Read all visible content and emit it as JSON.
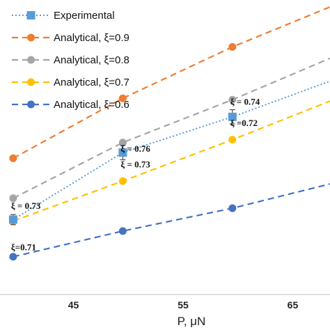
{
  "chart_data": {
    "type": "line",
    "title": "",
    "xlabel": "P, μN",
    "ylabel": "",
    "xlim": [
      38.3,
      68.4
    ],
    "ylim": [
      0,
      100
    ],
    "x_ticks": [
      45,
      55,
      65
    ],
    "x_tick_labels": [
      "45",
      "55",
      "65"
    ],
    "y_ticks_visible": false,
    "grid": false,
    "legend_position": "top-left",
    "series": [
      {
        "name": "Experimental",
        "style": "dotted",
        "marker": "square",
        "color": "#5B9BD5",
        "x": [
          39.5,
          49.5,
          59.5,
          68.4
        ],
        "y": [
          25.5,
          49.0,
          61.5,
          74.0
        ],
        "error_bars": [
          1.8,
          2.5,
          2.5,
          0
        ]
      },
      {
        "name": "Analytical, ξ=0.9",
        "style": "dashed",
        "marker": "circle",
        "color": "#ED7D31",
        "x": [
          39.5,
          49.5,
          59.5,
          68.4
        ],
        "y": [
          47.0,
          68.0,
          86.0,
          100.0
        ]
      },
      {
        "name": "Analytical, ξ=0.8",
        "style": "dashed",
        "marker": "circle",
        "color": "#A5A5A5",
        "x": [
          39.5,
          49.5,
          59.5,
          68.4
        ],
        "y": [
          33.0,
          52.5,
          67.5,
          82.0
        ]
      },
      {
        "name": "Analytical, ξ=0.7",
        "style": "dashed",
        "marker": "circle",
        "color": "#FFC000",
        "x": [
          39.5,
          49.5,
          59.5,
          68.4
        ],
        "y": [
          25.0,
          39.0,
          53.5,
          67.0
        ]
      },
      {
        "name": "Analytical, ξ=0.6",
        "style": "dashed",
        "marker": "circle",
        "color": "#4472C4",
        "x": [
          39.5,
          49.5,
          59.5,
          68.4
        ],
        "y": [
          12.5,
          21.5,
          29.5,
          38.0
        ]
      }
    ],
    "annotations": [
      {
        "text": "ξ = 0.73",
        "x": 39.5,
        "y": 30.5
      },
      {
        "text": "ξ = 0.76",
        "x": 49.5,
        "y": 50.5
      },
      {
        "text": "ξ = 0.73",
        "x": 49.5,
        "y": 45.0
      },
      {
        "text": "ξ = 0.74",
        "x": 59.5,
        "y": 67.0
      },
      {
        "text": "ξ =0.72",
        "x": 59.5,
        "y": 59.5
      },
      {
        "text": "ξ=0.71",
        "x": 39.5,
        "y": 16.0
      }
    ]
  }
}
